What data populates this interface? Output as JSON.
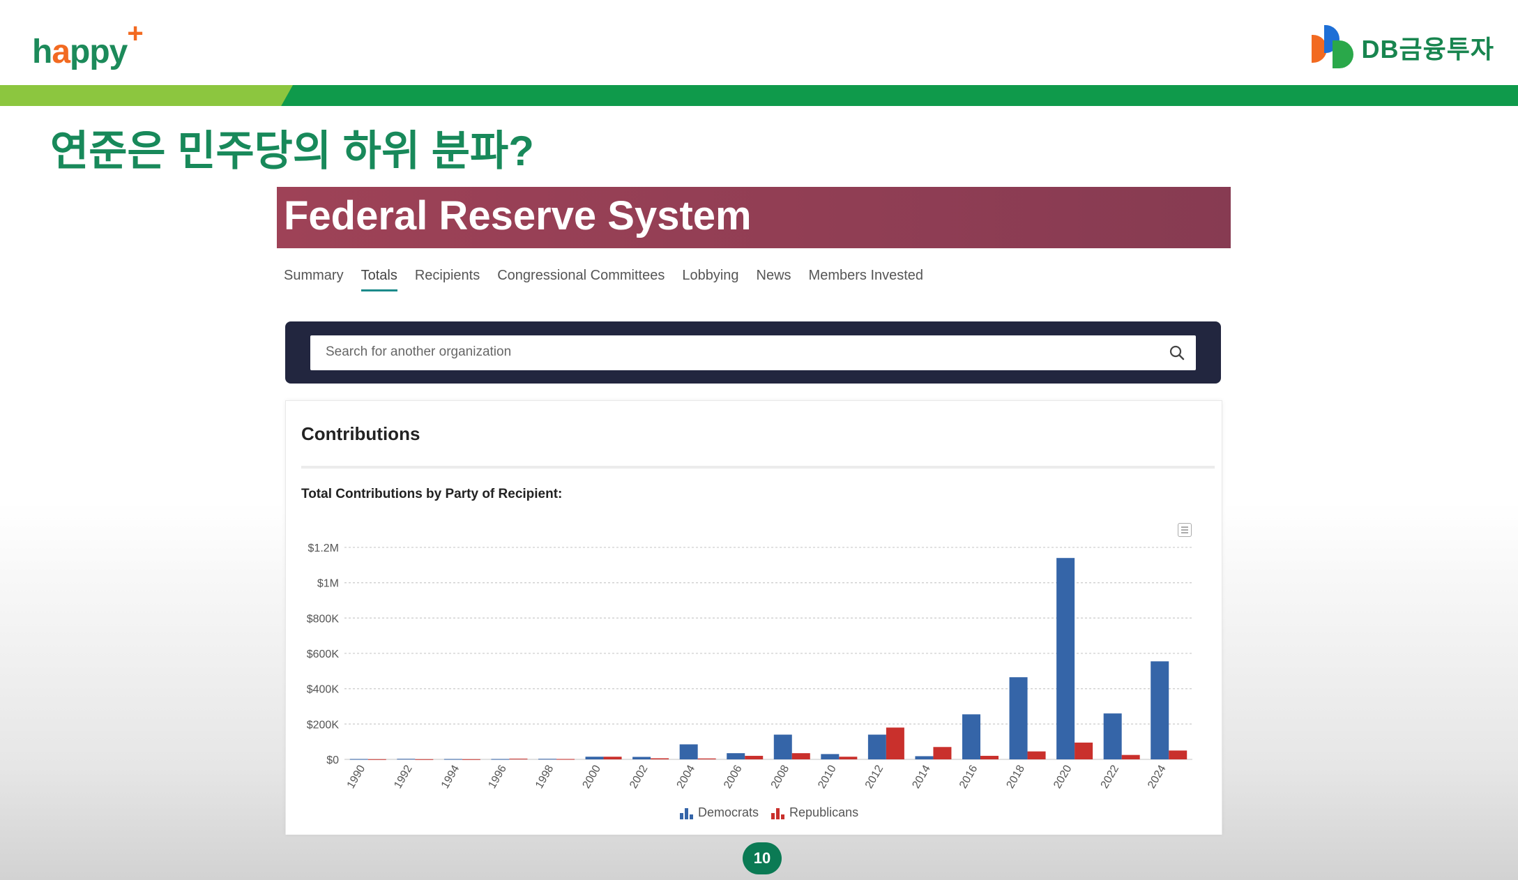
{
  "header": {
    "logo_left_prefix": "h",
    "logo_left_a": "a",
    "logo_left_rest": "ppy",
    "logo_left_plus": "+",
    "logo_right": "DB금융투자"
  },
  "slide": {
    "title": "연준은 민주당의 하위 분파?",
    "page_number": "10"
  },
  "page": {
    "banner_title": "Federal Reserve System",
    "tabs": [
      {
        "label": "Summary",
        "active": false
      },
      {
        "label": "Totals",
        "active": true
      },
      {
        "label": "Recipients",
        "active": false
      },
      {
        "label": "Congressional Committees",
        "active": false
      },
      {
        "label": "Lobbying",
        "active": false
      },
      {
        "label": "News",
        "active": false
      },
      {
        "label": "Members Invested",
        "active": false
      }
    ],
    "search": {
      "placeholder": "Search for another organization",
      "value": ""
    },
    "card_title": "Contributions",
    "chart_title": "Total Contributions by Party of Recipient:"
  },
  "colors": {
    "democrats": "#3565a8",
    "republicans": "#c9302c",
    "accent": "#1b8a8a"
  },
  "chart_data": {
    "type": "bar",
    "title": "Total Contributions by Party of Recipient:",
    "xlabel": "",
    "ylabel": "",
    "ylim": [
      0,
      1200000
    ],
    "yticks": [
      0,
      200000,
      400000,
      600000,
      800000,
      1000000,
      1200000
    ],
    "ytick_labels": [
      "$0",
      "$200K",
      "$400K",
      "$600K",
      "$800K",
      "$1M",
      "$1.2M"
    ],
    "grid": true,
    "legend": "bottom-center",
    "categories": [
      "1990",
      "1992",
      "1994",
      "1996",
      "1998",
      "2000",
      "2002",
      "2004",
      "2006",
      "2008",
      "2010",
      "2012",
      "2014",
      "2016",
      "2018",
      "2020",
      "2022",
      "2024"
    ],
    "series": [
      {
        "name": "Democrats",
        "color": "#3565a8",
        "values": [
          2000,
          3000,
          2000,
          2000,
          3000,
          15000,
          14000,
          85000,
          35000,
          140000,
          30000,
          140000,
          18000,
          255000,
          465000,
          1140000,
          260000,
          555000
        ]
      },
      {
        "name": "Republicans",
        "color": "#c9302c",
        "values": [
          1000,
          1000,
          1000,
          4000,
          2000,
          15000,
          6000,
          5000,
          20000,
          35000,
          15000,
          180000,
          70000,
          20000,
          45000,
          95000,
          25000,
          50000
        ]
      }
    ]
  }
}
